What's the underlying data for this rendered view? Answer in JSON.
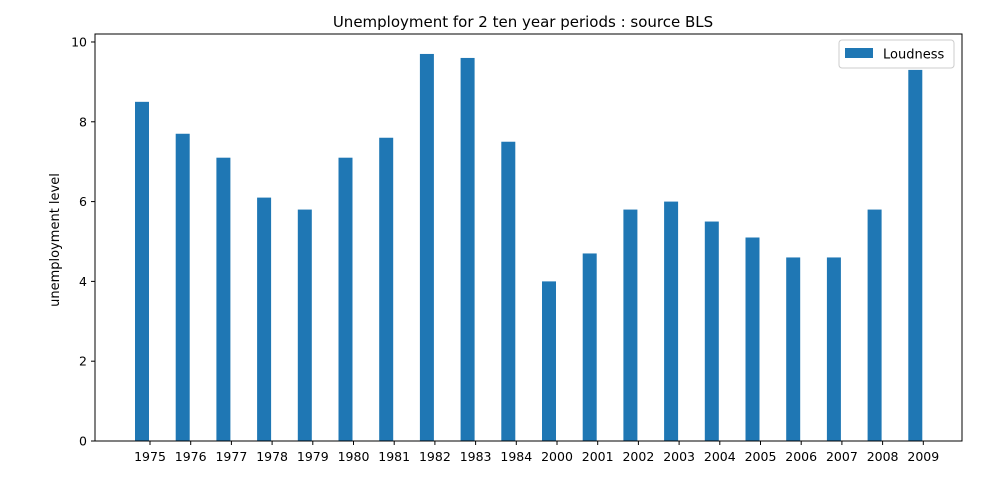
{
  "chart_data": {
    "type": "bar",
    "title": "Unemployment for 2 ten year periods  : source BLS",
    "xlabel": "",
    "ylabel": "unemployment level",
    "categories": [
      "1975",
      "1976",
      "1977",
      "1978",
      "1979",
      "1980",
      "1981",
      "1982",
      "1983",
      "1984",
      "2000",
      "2001",
      "2002",
      "2003",
      "2004",
      "2005",
      "2006",
      "2007",
      "2008",
      "2009"
    ],
    "series": [
      {
        "name": "Loudness",
        "color": "#1f77b4",
        "values": [
          8.5,
          7.7,
          7.1,
          6.1,
          5.8,
          7.1,
          7.6,
          9.7,
          9.6,
          7.5,
          4.0,
          4.7,
          5.8,
          6.0,
          5.5,
          5.1,
          4.6,
          4.6,
          5.8,
          9.3
        ]
      }
    ],
    "ylim": [
      0,
      10.2
    ],
    "yticks": [
      0,
      2,
      4,
      6,
      8,
      10
    ],
    "grid": false,
    "legend_position": "top-right"
  }
}
